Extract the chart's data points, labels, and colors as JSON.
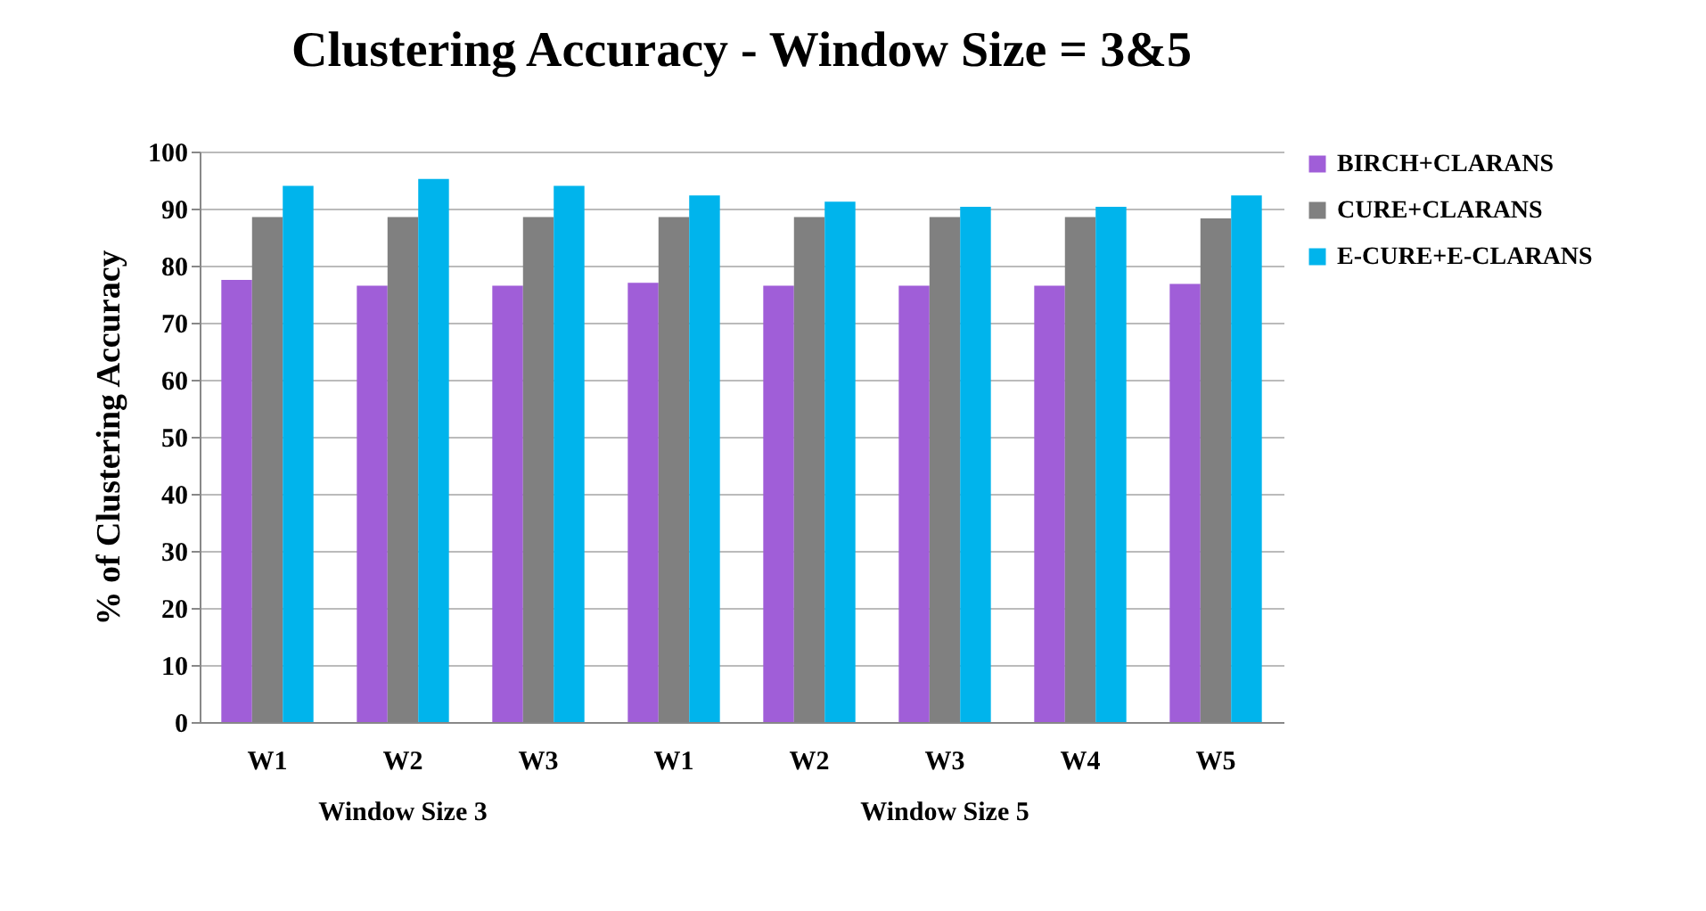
{
  "chart_data": {
    "type": "bar",
    "title": "Clustering Accuracy - Window Size = 3&5",
    "ylabel": "% of Clustering Accuracy",
    "categories": [
      "W1",
      "W2",
      "W3",
      "W1",
      "W2",
      "W3",
      "W4",
      "W5"
    ],
    "series": [
      {
        "name": "BIRCH+CLARANS",
        "color": "#a05ed8",
        "values": [
          77.5,
          76.5,
          76.5,
          77,
          76.5,
          76.5,
          76.5,
          76.8
        ]
      },
      {
        "name": "CURE+CLARANS",
        "color": "#808080",
        "values": [
          88.5,
          88.5,
          88.5,
          88.5,
          88.5,
          88.5,
          88.5,
          88.3
        ]
      },
      {
        "name": "E-CURE+E-CLARANS",
        "color": "#00b4ec",
        "values": [
          94,
          95.2,
          94,
          92.3,
          91.2,
          90.3,
          90.3,
          92.3
        ]
      }
    ],
    "ylim": [
      0,
      100
    ],
    "yticks": [
      0,
      10,
      20,
      30,
      40,
      50,
      60,
      70,
      80,
      90,
      100
    ],
    "grid": "y",
    "legend": "right",
    "annotations": [
      "Window Size 3",
      "Window Size 5"
    ]
  }
}
